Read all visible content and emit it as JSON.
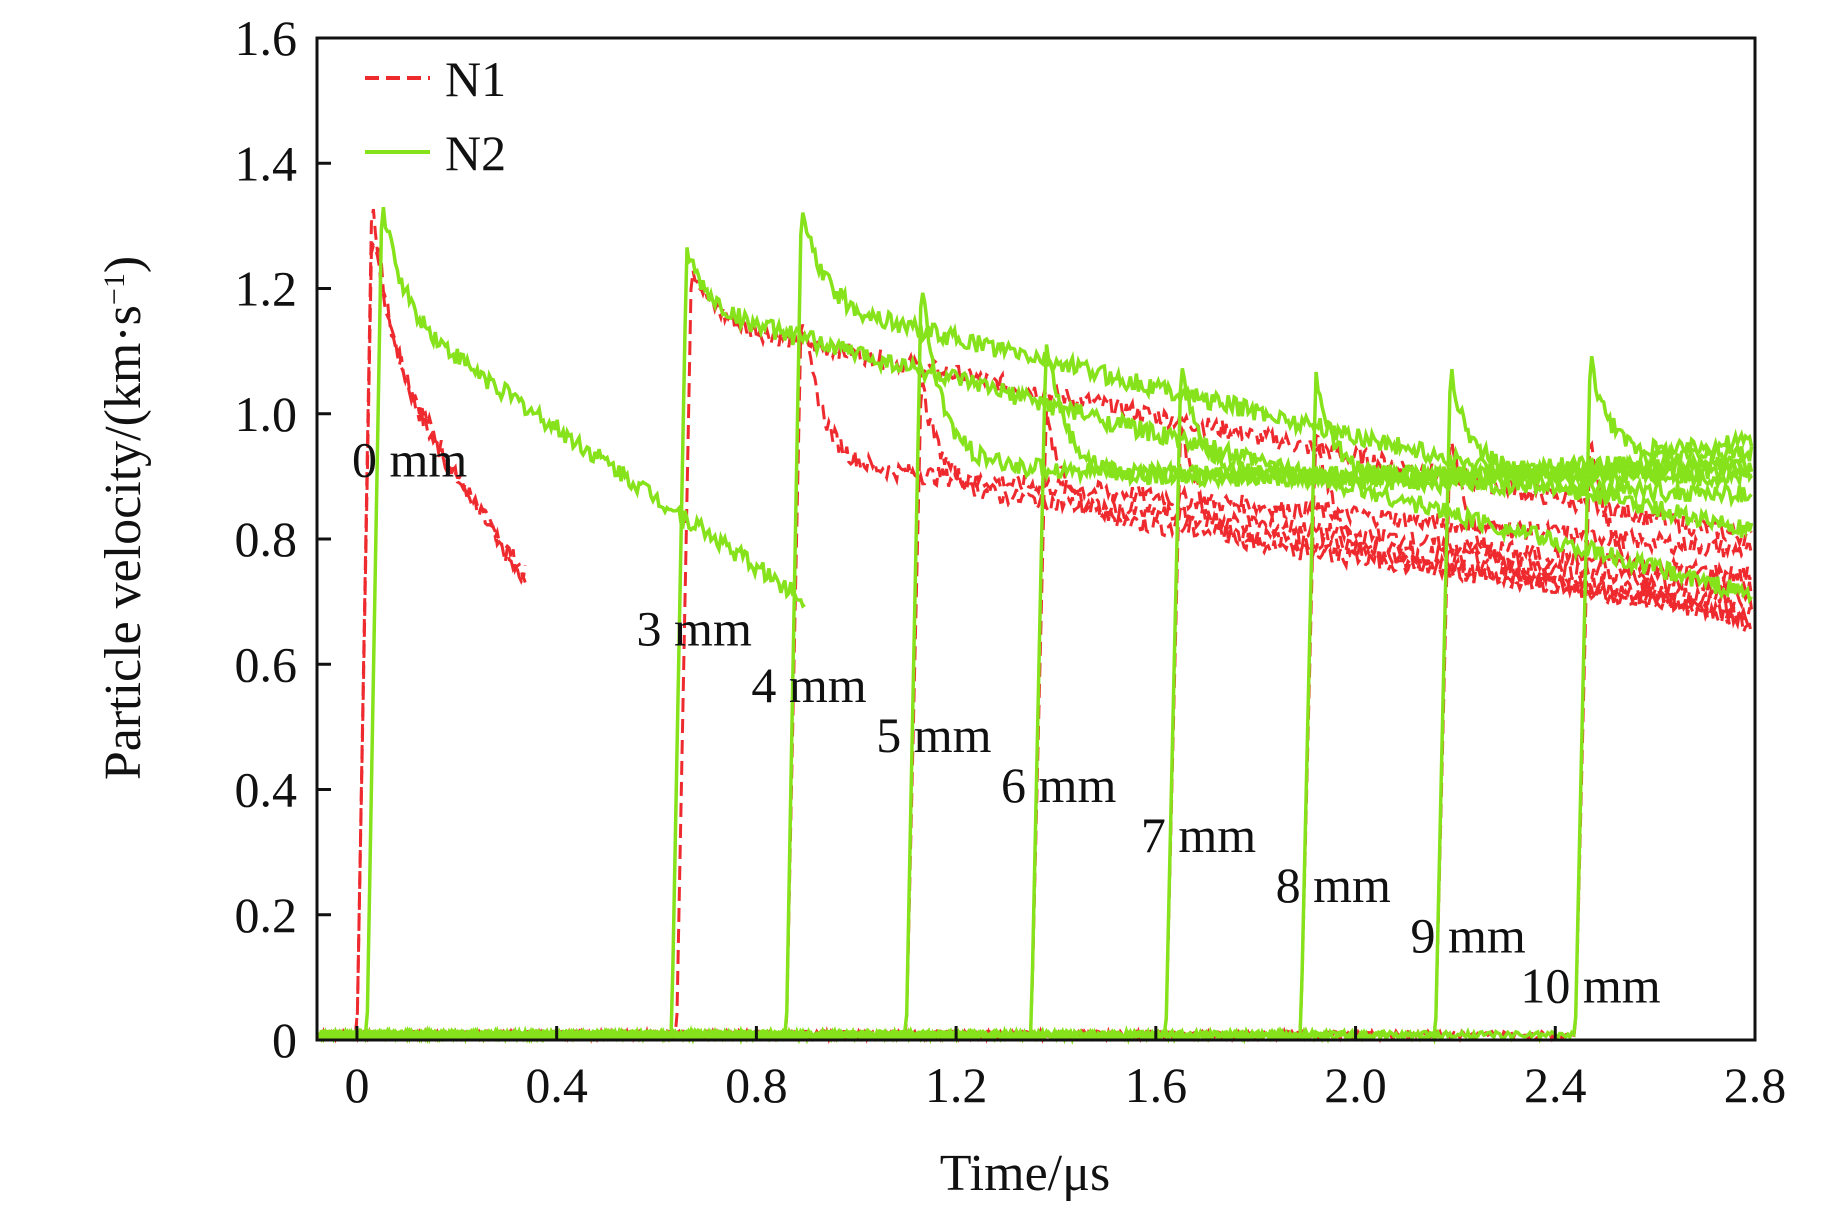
{
  "chart_data": {
    "type": "line",
    "title": "",
    "xlabel": "Time/μs",
    "ylabel_main": "Particle velocity/(km·s",
    "ylabel_sup": "−1",
    "ylabel_close": ")",
    "xlim": [
      -0.08,
      2.8
    ],
    "ylim": [
      0,
      1.6
    ],
    "xticks": [
      0,
      0.4,
      0.8,
      1.2,
      1.6,
      2.0,
      2.4,
      2.8
    ],
    "xtick_labels": [
      "0",
      "0.4",
      "0.8",
      "1.2",
      "1.6",
      "2.0",
      "2.4",
      "2.8"
    ],
    "yticks": [
      0,
      0.2,
      0.4,
      0.6,
      0.8,
      1.0,
      1.2,
      1.4,
      1.6
    ],
    "ytick_labels": [
      "0",
      "0.2",
      "0.4",
      "0.6",
      "0.8",
      "1.0",
      "1.2",
      "1.4",
      "1.6"
    ],
    "legend_position": "top-left",
    "series": [
      {
        "name": "N1",
        "color": "#ee2a2f",
        "style": "dashed",
        "gauges": [
          {
            "t0": 0.0,
            "peak": 1.35,
            "plateau": 1.08,
            "end": 0.34,
            "tail": 0.74
          },
          {
            "t0": 0.0,
            "peak": 1.3,
            "plateau": 1.12,
            "end": 0.34,
            "tail": 0.72
          },
          {
            "t0": 0.64,
            "peak": 1.24,
            "plateau": 1.15,
            "end": 2.8,
            "tail": 0.8
          },
          {
            "t0": 0.86,
            "peak": 1.17,
            "plateau": 0.92,
            "end": 2.8,
            "tail": 0.78
          },
          {
            "t0": 1.1,
            "peak": 1.05,
            "plateau": 0.88,
            "end": 2.8,
            "tail": 0.74
          },
          {
            "t0": 1.35,
            "peak": 1.0,
            "plateau": 0.84,
            "end": 2.8,
            "tail": 0.72
          },
          {
            "t0": 1.62,
            "peak": 0.99,
            "plateau": 0.8,
            "end": 2.8,
            "tail": 0.7
          },
          {
            "t0": 1.89,
            "peak": 0.98,
            "plateau": 0.78,
            "end": 2.8,
            "tail": 0.68
          },
          {
            "t0": 2.16,
            "peak": 0.98,
            "plateau": 0.76,
            "end": 2.8,
            "tail": 0.67
          },
          {
            "t0": 2.44,
            "peak": 0.98,
            "plateau": 0.74,
            "end": 2.8,
            "tail": 0.66
          }
        ]
      },
      {
        "name": "N2",
        "color": "#86e21a",
        "style": "solid",
        "gauges": [
          {
            "t0": 0.02,
            "peak": 1.34,
            "plateau": 1.17,
            "end": 0.9,
            "tail": 0.7
          },
          {
            "t0": 0.63,
            "peak": 1.26,
            "plateau": 1.17,
            "end": 2.8,
            "tail": 0.71
          },
          {
            "t0": 0.86,
            "peak": 1.33,
            "plateau": 1.18,
            "end": 2.8,
            "tail": 0.81
          },
          {
            "t0": 1.1,
            "peak": 1.21,
            "plateau": 0.92,
            "end": 2.8,
            "tail": 0.87
          },
          {
            "t0": 1.35,
            "peak": 1.13,
            "plateau": 0.9,
            "end": 2.8,
            "tail": 0.9
          },
          {
            "t0": 1.62,
            "peak": 1.07,
            "plateau": 0.9,
            "end": 2.8,
            "tail": 0.91
          },
          {
            "t0": 1.89,
            "peak": 1.06,
            "plateau": 0.89,
            "end": 2.8,
            "tail": 0.92
          },
          {
            "t0": 2.16,
            "peak": 1.07,
            "plateau": 0.9,
            "end": 2.8,
            "tail": 0.94
          },
          {
            "t0": 2.44,
            "peak": 1.09,
            "plateau": 0.92,
            "end": 2.8,
            "tail": 0.96
          }
        ]
      }
    ],
    "annotations": [
      {
        "text": "0 mm",
        "x": -0.01,
        "y": 0.9
      },
      {
        "text": "3 mm",
        "x": 0.56,
        "y": 0.63
      },
      {
        "text": "4 mm",
        "x": 0.79,
        "y": 0.54
      },
      {
        "text": "5 mm",
        "x": 1.04,
        "y": 0.46
      },
      {
        "text": "6 mm",
        "x": 1.29,
        "y": 0.38
      },
      {
        "text": "7 mm",
        "x": 1.57,
        "y": 0.3
      },
      {
        "text": "8 mm",
        "x": 1.84,
        "y": 0.22
      },
      {
        "text": "9 mm",
        "x": 2.11,
        "y": 0.14
      },
      {
        "text": "10 mm",
        "x": 2.33,
        "y": 0.06
      }
    ]
  }
}
